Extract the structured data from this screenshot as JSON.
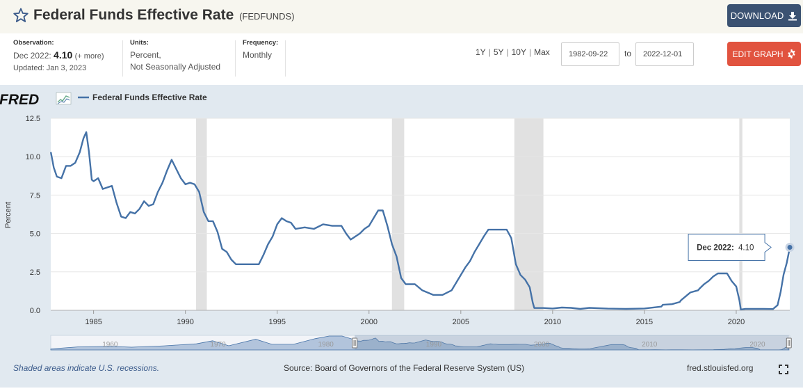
{
  "header": {
    "title": "Federal Funds Effective Rate",
    "series_id": "(FEDFUNDS)",
    "download_label": "DOWNLOAD",
    "star_icon": "star-outline-icon",
    "download_icon": "download-icon"
  },
  "meta": {
    "observation_label": "Observation:",
    "observation_period": "Dec 2022:",
    "observation_value": "4.10",
    "more_label": "(+ more)",
    "updated": "Updated: Jan 3, 2023",
    "units_label": "Units:",
    "units_line1": "Percent,",
    "units_line2": "Not Seasonally Adjusted",
    "frequency_label": "Frequency:",
    "frequency_value": "Monthly"
  },
  "controls": {
    "range_links": [
      "1Y",
      "5Y",
      "10Y",
      "Max"
    ],
    "start_date": "1982-09-22",
    "to_label": "to",
    "end_date": "2022-12-01",
    "edit_label": "EDIT GRAPH",
    "gear_icon": "gear-icon"
  },
  "footer": {
    "recession_note": "Shaded areas indicate U.S. recessions.",
    "source": "Source: Board of Governors of the Federal Reserve System (US)",
    "site": "fred.stlouisfed.org"
  },
  "chart_data": {
    "type": "line",
    "logo": "FRED",
    "legend_label": "Federal Funds Effective Rate",
    "ylabel": "Percent",
    "ylim": [
      0,
      12.5
    ],
    "xlim": [
      1982.667,
      2022.917
    ],
    "y_ticks": [
      0.0,
      2.5,
      5.0,
      7.5,
      10.0,
      12.5
    ],
    "y_tick_labels": [
      "0.0",
      "2.5",
      "5.0",
      "7.5",
      "10.0",
      "12.5"
    ],
    "x_ticks": [
      1985,
      1990,
      1995,
      2000,
      2005,
      2010,
      2015,
      2020
    ],
    "x_tick_labels": [
      "1985",
      "1990",
      "1995",
      "2000",
      "2005",
      "2010",
      "2015",
      "2020"
    ],
    "line_color": "#4572a7",
    "recession_color": "#e1e1e1",
    "recessions": [
      [
        1990.583,
        1991.167
      ],
      [
        2001.25,
        2001.917
      ],
      [
        2007.917,
        2009.5
      ],
      [
        2020.167,
        2020.333
      ]
    ],
    "series": [
      {
        "name": "Federal Funds Effective Rate",
        "x": [
          1982.67,
          1982.83,
          1983.0,
          1983.25,
          1983.5,
          1983.75,
          1984.0,
          1984.25,
          1984.45,
          1984.6,
          1984.75,
          1984.9,
          1985.0,
          1985.25,
          1985.5,
          1985.75,
          1986.0,
          1986.25,
          1986.5,
          1986.75,
          1987.0,
          1987.25,
          1987.5,
          1987.75,
          1988.0,
          1988.25,
          1988.5,
          1988.75,
          1989.0,
          1989.25,
          1989.5,
          1989.75,
          1990.0,
          1990.25,
          1990.5,
          1990.75,
          1991.0,
          1991.25,
          1991.5,
          1991.75,
          1992.0,
          1992.25,
          1992.5,
          1992.75,
          1993.0,
          1993.5,
          1994.0,
          1994.25,
          1994.5,
          1994.75,
          1995.0,
          1995.25,
          1995.5,
          1995.75,
          1996.0,
          1996.5,
          1997.0,
          1997.5,
          1998.0,
          1998.5,
          1998.75,
          1999.0,
          1999.25,
          1999.5,
          1999.75,
          2000.0,
          2000.25,
          2000.5,
          2000.75,
          2001.0,
          2001.25,
          2001.5,
          2001.75,
          2002.0,
          2002.5,
          2002.9,
          2003.0,
          2003.5,
          2004.0,
          2004.5,
          2004.75,
          2005.0,
          2005.25,
          2005.5,
          2005.75,
          2006.0,
          2006.25,
          2006.5,
          2006.75,
          2007.0,
          2007.5,
          2007.75,
          2008.0,
          2008.25,
          2008.5,
          2008.75,
          2008.92,
          2009.0,
          2009.5,
          2010.0,
          2010.5,
          2011.0,
          2011.5,
          2012.0,
          2013.0,
          2014.0,
          2015.0,
          2015.92,
          2016.0,
          2016.5,
          2016.92,
          2017.0,
          2017.25,
          2017.5,
          2017.92,
          2018.0,
          2018.25,
          2018.5,
          2018.75,
          2019.0,
          2019.5,
          2019.75,
          2020.0,
          2020.17,
          2020.25,
          2020.5,
          2021.0,
          2021.5,
          2022.0,
          2022.25,
          2022.42,
          2022.58,
          2022.75,
          2022.92
        ],
        "values": [
          10.3,
          9.3,
          8.7,
          8.6,
          9.4,
          9.4,
          9.6,
          10.3,
          11.2,
          11.6,
          10.3,
          8.5,
          8.4,
          8.6,
          7.9,
          8.0,
          8.1,
          7.0,
          6.1,
          6.0,
          6.4,
          6.3,
          6.6,
          7.1,
          6.8,
          6.9,
          7.7,
          8.3,
          9.1,
          9.8,
          9.2,
          8.6,
          8.2,
          8.3,
          8.2,
          7.7,
          6.4,
          5.8,
          5.8,
          5.1,
          4.0,
          3.8,
          3.3,
          3.0,
          3.0,
          3.0,
          3.0,
          3.6,
          4.3,
          4.8,
          5.6,
          6.0,
          5.8,
          5.7,
          5.3,
          5.4,
          5.3,
          5.6,
          5.5,
          5.5,
          5.0,
          4.6,
          4.8,
          5.0,
          5.3,
          5.5,
          6.0,
          6.5,
          6.5,
          5.5,
          4.3,
          3.5,
          2.1,
          1.7,
          1.7,
          1.3,
          1.25,
          1.0,
          1.0,
          1.3,
          1.8,
          2.3,
          2.8,
          3.2,
          3.8,
          4.3,
          4.8,
          5.25,
          5.25,
          5.25,
          5.25,
          4.7,
          3.0,
          2.3,
          2.0,
          1.5,
          0.5,
          0.15,
          0.15,
          0.12,
          0.18,
          0.16,
          0.09,
          0.16,
          0.11,
          0.09,
          0.12,
          0.24,
          0.36,
          0.4,
          0.54,
          0.66,
          0.91,
          1.16,
          1.3,
          1.41,
          1.7,
          1.91,
          2.2,
          2.4,
          2.4,
          1.9,
          1.55,
          0.65,
          0.05,
          0.09,
          0.09,
          0.09,
          0.08,
          0.33,
          1.21,
          2.33,
          3.08,
          4.1
        ]
      }
    ],
    "tooltip": {
      "label": "Dec 2022:",
      "value": "4.10"
    },
    "navigator": {
      "tick_labels": [
        "1960",
        "1970",
        "1980",
        "1990",
        "2000",
        "2010",
        "2020"
      ],
      "tick_years": [
        1960,
        1970,
        1980,
        1990,
        2000,
        2010,
        2020
      ],
      "xlim": [
        1954.5,
        2023.0
      ],
      "selection": [
        1982.67,
        2022.92
      ]
    }
  }
}
